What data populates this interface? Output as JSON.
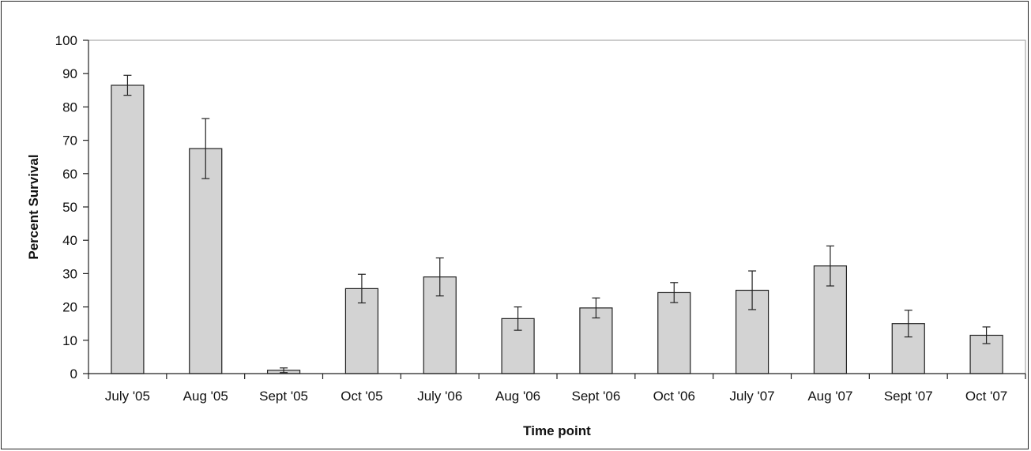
{
  "chart_data": {
    "type": "bar",
    "title": "",
    "xlabel": "Time point",
    "ylabel": "Percent Survival",
    "ylim": [
      0,
      100
    ],
    "yticks": [
      0,
      10,
      20,
      30,
      40,
      50,
      60,
      70,
      80,
      90,
      100
    ],
    "grid": false,
    "legend": "none",
    "categories": [
      "July '05",
      "Aug '05",
      "Sept '05",
      "Oct '05",
      "July '06",
      "Aug '06",
      "Sept '06",
      "Oct '06",
      "July '07",
      "Aug '07",
      "Sept '07",
      "Oct '07"
    ],
    "values": [
      86.5,
      67.5,
      1.0,
      25.5,
      29.0,
      16.5,
      19.7,
      24.3,
      25.0,
      32.3,
      15.0,
      11.5
    ],
    "error": [
      3.0,
      9.0,
      0.7,
      4.3,
      5.7,
      3.5,
      3.0,
      3.0,
      5.8,
      6.0,
      4.0,
      2.5
    ],
    "colors": {
      "bar_fill": "#d3d3d3",
      "bar_stroke": "#222222",
      "axis": "#222222",
      "plot_border": "#9a9a9a"
    }
  }
}
